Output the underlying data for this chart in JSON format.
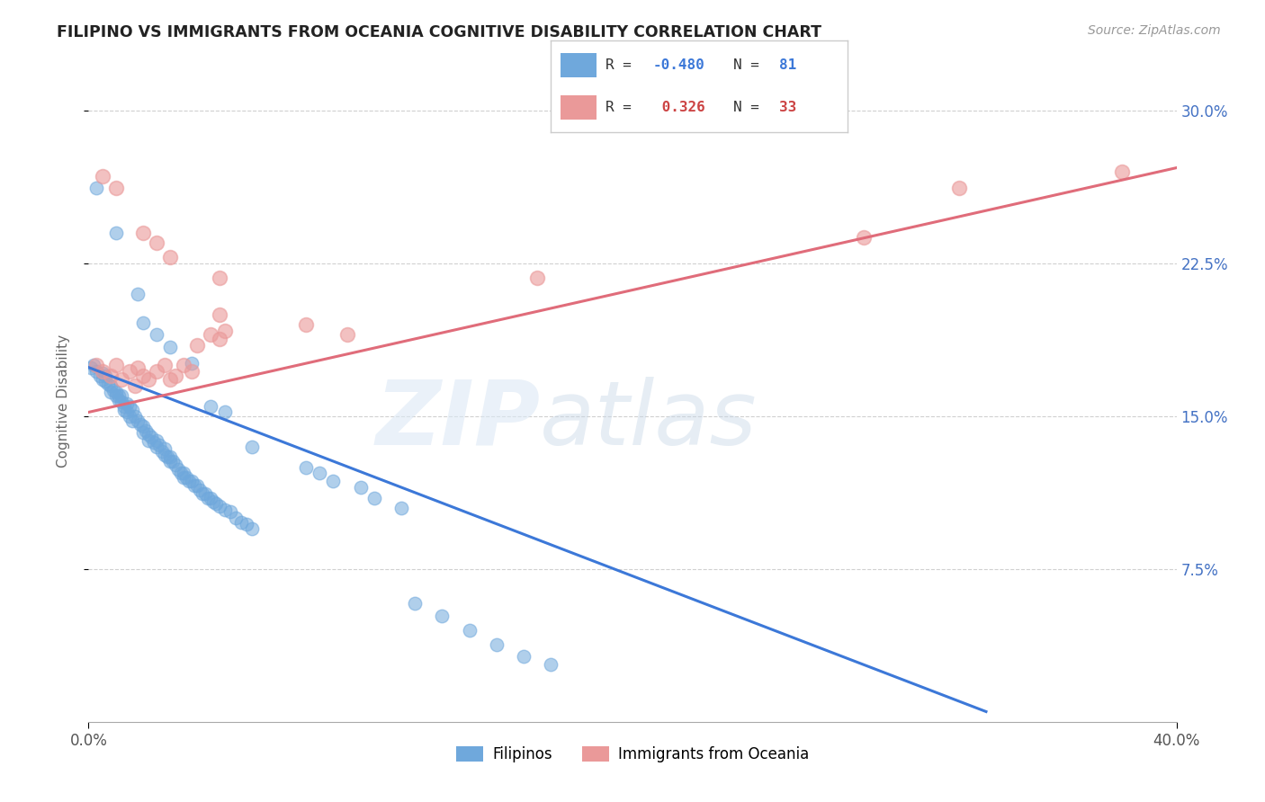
{
  "title": "FILIPINO VS IMMIGRANTS FROM OCEANIA COGNITIVE DISABILITY CORRELATION CHART",
  "source": "Source: ZipAtlas.com",
  "ylabel": "Cognitive Disability",
  "yticks_labels": [
    "7.5%",
    "15.0%",
    "22.5%",
    "30.0%"
  ],
  "ytick_vals": [
    0.075,
    0.15,
    0.225,
    0.3
  ],
  "xlim": [
    0.0,
    0.4
  ],
  "ylim": [
    0.0,
    0.315
  ],
  "filipino_color": "#6fa8dc",
  "oceania_color": "#ea9999",
  "filipino_line_color": "#3c78d8",
  "oceania_line_color": "#e06c7a",
  "background_color": "#ffffff",
  "filipinos_label": "Filipinos",
  "oceania_label": "Immigrants from Oceania",
  "filipino_scatter": [
    [
      0.001,
      0.174
    ],
    [
      0.002,
      0.175
    ],
    [
      0.003,
      0.172
    ],
    [
      0.004,
      0.17
    ],
    [
      0.005,
      0.171
    ],
    [
      0.005,
      0.168
    ],
    [
      0.006,
      0.17
    ],
    [
      0.006,
      0.167
    ],
    [
      0.007,
      0.166
    ],
    [
      0.008,
      0.165
    ],
    [
      0.008,
      0.162
    ],
    [
      0.009,
      0.163
    ],
    [
      0.01,
      0.162
    ],
    [
      0.01,
      0.16
    ],
    [
      0.011,
      0.16
    ],
    [
      0.011,
      0.158
    ],
    [
      0.012,
      0.16
    ],
    [
      0.012,
      0.157
    ],
    [
      0.013,
      0.155
    ],
    [
      0.013,
      0.153
    ],
    [
      0.014,
      0.156
    ],
    [
      0.014,
      0.152
    ],
    [
      0.015,
      0.155
    ],
    [
      0.015,
      0.15
    ],
    [
      0.016,
      0.153
    ],
    [
      0.016,
      0.148
    ],
    [
      0.017,
      0.15
    ],
    [
      0.018,
      0.148
    ],
    [
      0.019,
      0.146
    ],
    [
      0.02,
      0.145
    ],
    [
      0.02,
      0.142
    ],
    [
      0.021,
      0.143
    ],
    [
      0.022,
      0.141
    ],
    [
      0.022,
      0.138
    ],
    [
      0.023,
      0.14
    ],
    [
      0.024,
      0.137
    ],
    [
      0.025,
      0.138
    ],
    [
      0.025,
      0.135
    ],
    [
      0.026,
      0.136
    ],
    [
      0.027,
      0.133
    ],
    [
      0.028,
      0.134
    ],
    [
      0.028,
      0.131
    ],
    [
      0.029,
      0.13
    ],
    [
      0.03,
      0.13
    ],
    [
      0.03,
      0.128
    ],
    [
      0.031,
      0.128
    ],
    [
      0.032,
      0.126
    ],
    [
      0.033,
      0.124
    ],
    [
      0.034,
      0.122
    ],
    [
      0.035,
      0.122
    ],
    [
      0.035,
      0.12
    ],
    [
      0.036,
      0.12
    ],
    [
      0.037,
      0.118
    ],
    [
      0.038,
      0.118
    ],
    [
      0.039,
      0.116
    ],
    [
      0.04,
      0.116
    ],
    [
      0.041,
      0.114
    ],
    [
      0.042,
      0.112
    ],
    [
      0.043,
      0.112
    ],
    [
      0.044,
      0.11
    ],
    [
      0.045,
      0.11
    ],
    [
      0.046,
      0.108
    ],
    [
      0.047,
      0.107
    ],
    [
      0.048,
      0.106
    ],
    [
      0.05,
      0.104
    ],
    [
      0.052,
      0.103
    ],
    [
      0.054,
      0.1
    ],
    [
      0.056,
      0.098
    ],
    [
      0.058,
      0.097
    ],
    [
      0.06,
      0.095
    ],
    [
      0.003,
      0.262
    ],
    [
      0.01,
      0.24
    ],
    [
      0.018,
      0.21
    ],
    [
      0.02,
      0.196
    ],
    [
      0.025,
      0.19
    ],
    [
      0.03,
      0.184
    ],
    [
      0.038,
      0.176
    ],
    [
      0.045,
      0.155
    ],
    [
      0.05,
      0.152
    ],
    [
      0.06,
      0.135
    ],
    [
      0.08,
      0.125
    ],
    [
      0.085,
      0.122
    ],
    [
      0.09,
      0.118
    ],
    [
      0.1,
      0.115
    ],
    [
      0.105,
      0.11
    ],
    [
      0.115,
      0.105
    ],
    [
      0.12,
      0.058
    ],
    [
      0.13,
      0.052
    ],
    [
      0.14,
      0.045
    ],
    [
      0.15,
      0.038
    ],
    [
      0.16,
      0.032
    ],
    [
      0.17,
      0.028
    ]
  ],
  "oceania_scatter": [
    [
      0.003,
      0.175
    ],
    [
      0.005,
      0.172
    ],
    [
      0.008,
      0.17
    ],
    [
      0.01,
      0.175
    ],
    [
      0.012,
      0.168
    ],
    [
      0.015,
      0.172
    ],
    [
      0.017,
      0.165
    ],
    [
      0.018,
      0.174
    ],
    [
      0.02,
      0.17
    ],
    [
      0.022,
      0.168
    ],
    [
      0.025,
      0.172
    ],
    [
      0.028,
      0.175
    ],
    [
      0.03,
      0.168
    ],
    [
      0.032,
      0.17
    ],
    [
      0.035,
      0.175
    ],
    [
      0.038,
      0.172
    ],
    [
      0.04,
      0.185
    ],
    [
      0.045,
      0.19
    ],
    [
      0.048,
      0.188
    ],
    [
      0.05,
      0.192
    ],
    [
      0.005,
      0.268
    ],
    [
      0.01,
      0.262
    ],
    [
      0.02,
      0.24
    ],
    [
      0.025,
      0.235
    ],
    [
      0.03,
      0.228
    ],
    [
      0.048,
      0.218
    ],
    [
      0.048,
      0.2
    ],
    [
      0.08,
      0.195
    ],
    [
      0.095,
      0.19
    ],
    [
      0.165,
      0.218
    ],
    [
      0.285,
      0.238
    ],
    [
      0.32,
      0.262
    ],
    [
      0.38,
      0.27
    ]
  ],
  "filipino_trendline": [
    [
      0.0,
      0.174
    ],
    [
      0.33,
      0.005
    ]
  ],
  "oceania_trendline": [
    [
      0.0,
      0.152
    ],
    [
      0.4,
      0.272
    ]
  ]
}
